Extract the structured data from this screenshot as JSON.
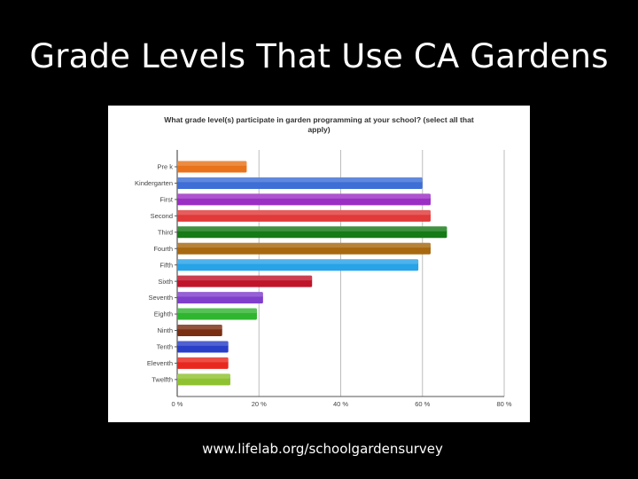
{
  "slide": {
    "title": "Grade Levels That Use CA Gardens",
    "footer": "www.lifelab.org/schoolgardensurvey"
  },
  "chart_data": {
    "type": "bar",
    "orientation": "horizontal",
    "title_lines": [
      "What grade level(s) participate in garden programming at your school? (select all that",
      "apply)"
    ],
    "categories": [
      "Pre k",
      "Kindergarten",
      "First",
      "Second",
      "Third",
      "Fourth",
      "Fifth",
      "Sixth",
      "Seventh",
      "Eighth",
      "Ninth",
      "Tenth",
      "Eleventh",
      "Twelfth"
    ],
    "values": [
      17,
      60,
      62,
      62,
      66,
      62,
      59,
      33,
      21,
      19.5,
      11,
      12.5,
      12.5,
      13
    ],
    "colors": [
      "#e8731a",
      "#3d6fd6",
      "#9b2fc4",
      "#e13a3a",
      "#167a16",
      "#a8680f",
      "#27a3e8",
      "#c0142a",
      "#7f3fcc",
      "#2fb52f",
      "#7a2e12",
      "#2a3fc8",
      "#e8281e",
      "#8fc230"
    ],
    "x_ticks": [
      "0 %",
      "20 %",
      "40 %",
      "60 %",
      "80 %"
    ],
    "xlim": [
      0,
      80
    ],
    "unit": "%",
    "grid": true
  }
}
